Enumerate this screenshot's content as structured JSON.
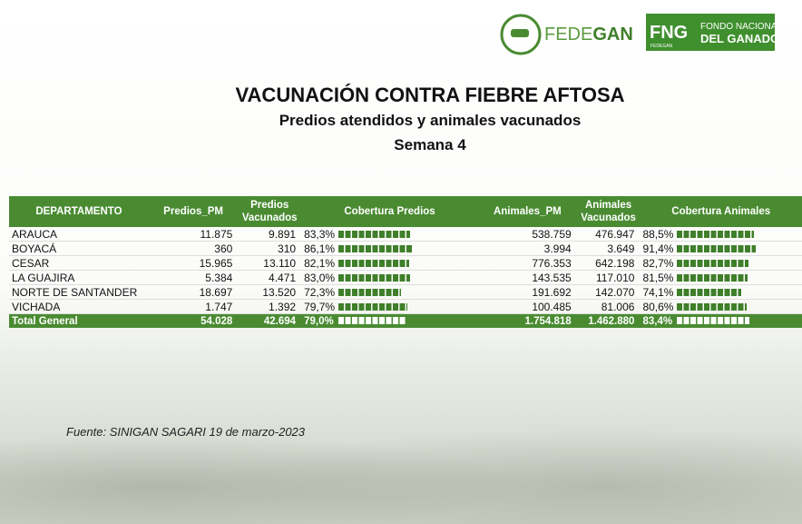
{
  "logos": {
    "fedegan": [
      "FEDE",
      "GAN"
    ],
    "fng": {
      "mark": "FNG",
      "small": "FEDEGAN",
      "line1": "FONDO NACIONAL",
      "line2": "DEL GANADO"
    }
  },
  "header": {
    "title": "VACUNACIÓN CONTRA  FIEBRE AFTOSA",
    "subtitle": "Predios atendidos y animales vacunados",
    "week": "Semana 4"
  },
  "table": {
    "columns": [
      "DEPARTAMENTO",
      "Predios_PM",
      "Predios Vacunados",
      "Cobertura Predios",
      "Animales_PM",
      "Animales Vacunados",
      "Cobertura Animales"
    ],
    "rows": [
      [
        "ARAUCA",
        "11.875",
        "9.891",
        {
          "value": 83.3,
          "label": "83,3%"
        },
        "538.759",
        "476.947",
        {
          "value": 88.5,
          "label": "88,5%"
        }
      ],
      [
        "BOYACÁ",
        "360",
        "310",
        {
          "value": 86.1,
          "label": "86,1%"
        },
        "3.994",
        "3.649",
        {
          "value": 91.4,
          "label": "91,4%"
        }
      ],
      [
        "CESAR",
        "15.965",
        "13.110",
        {
          "value": 82.1,
          "label": "82,1%"
        },
        "776.353",
        "642.198",
        {
          "value": 82.7,
          "label": "82,7%"
        }
      ],
      [
        "LA GUAJIRA",
        "5.384",
        "4.471",
        {
          "value": 83.0,
          "label": "83,0%"
        },
        "143.535",
        "117.010",
        {
          "value": 81.5,
          "label": "81,5%"
        }
      ],
      [
        "NORTE DE SANTANDER",
        "18.697",
        "13.520",
        {
          "value": 72.3,
          "label": "72,3%"
        },
        "191.692",
        "142.070",
        {
          "value": 74.1,
          "label": "74,1%"
        }
      ],
      [
        "VICHADA",
        "1.747",
        "1.392",
        {
          "value": 79.7,
          "label": "79,7%"
        },
        "100.485",
        "81.006",
        {
          "value": 80.6,
          "label": "80,6%"
        }
      ]
    ],
    "total": [
      "Total General",
      "54.028",
      "42.694",
      {
        "value": 79.0,
        "label": "79,0%"
      },
      "1.754.818",
      "1.462.880",
      {
        "value": 83.4,
        "label": "83,4%"
      }
    ]
  },
  "source": "Fuente: SINIGAN SAGARI 19 de marzo-2023"
}
